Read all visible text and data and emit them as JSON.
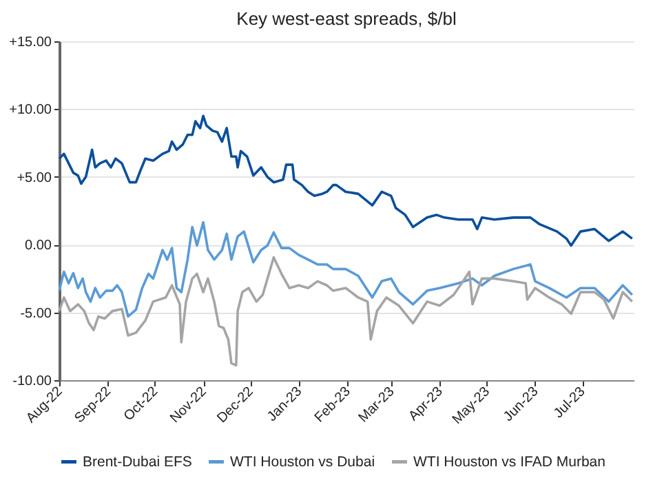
{
  "chart_data": {
    "type": "line",
    "title": "Key west-east spreads, $/bl",
    "xlim": [
      "2022-08-01",
      "2023-08-03"
    ],
    "xticks": [
      {
        "value": "2022-08-01",
        "label": "Aug-22"
      },
      {
        "value": "2022-09-01",
        "label": "Sep-22"
      },
      {
        "value": "2022-10-01",
        "label": "Oct-22"
      },
      {
        "value": "2022-11-01",
        "label": "Nov-22"
      },
      {
        "value": "2022-12-01",
        "label": "Dec-22"
      },
      {
        "value": "2023-01-01",
        "label": "Jan-23"
      },
      {
        "value": "2023-02-01",
        "label": "Feb-23"
      },
      {
        "value": "2023-03-01",
        "label": "Mar-23"
      },
      {
        "value": "2023-04-01",
        "label": "Apr-23"
      },
      {
        "value": "2023-05-01",
        "label": "May-23"
      },
      {
        "value": "2023-06-01",
        "label": "Jun-23"
      },
      {
        "value": "2023-07-01",
        "label": "Jul-23"
      }
    ],
    "ylim": [
      -10,
      15
    ],
    "yticks": [
      {
        "value": -10,
        "label": "-10.00"
      },
      {
        "value": -5,
        "label": "-5.00"
      },
      {
        "value": 0,
        "label": "0.00"
      },
      {
        "value": 5,
        "label": "+5.00"
      },
      {
        "value": 10,
        "label": "+10.00"
      },
      {
        "value": 15,
        "label": "+15.00"
      }
    ],
    "grid": "y",
    "legend": "bottom",
    "line_style": "solid",
    "series": [
      {
        "name": "Brent-Dubai EFS",
        "color": "#0b4f9c",
        "x": [
          "2022-08-01",
          "2022-08-04",
          "2022-08-07",
          "2022-08-10",
          "2022-08-13",
          "2022-08-15",
          "2022-08-18",
          "2022-08-22",
          "2022-08-24",
          "2022-08-27",
          "2022-08-31",
          "2022-09-03",
          "2022-09-06",
          "2022-09-10",
          "2022-09-15",
          "2022-09-19",
          "2022-09-22",
          "2022-09-25",
          "2022-09-30",
          "2022-10-06",
          "2022-10-10",
          "2022-10-12",
          "2022-10-15",
          "2022-10-19",
          "2022-10-22",
          "2022-10-25",
          "2022-10-27",
          "2022-10-30",
          "2022-11-01",
          "2022-11-03",
          "2022-11-07",
          "2022-11-10",
          "2022-11-13",
          "2022-11-16",
          "2022-11-19",
          "2022-11-22",
          "2022-11-23",
          "2022-11-25",
          "2022-11-29",
          "2022-12-03",
          "2022-12-08",
          "2022-12-12",
          "2022-12-16",
          "2022-12-22",
          "2022-12-24",
          "2022-12-28",
          "2022-12-29",
          "2023-01-03",
          "2023-01-07",
          "2023-01-11",
          "2023-01-16",
          "2023-01-19",
          "2023-01-23",
          "2023-01-25",
          "2023-01-31",
          "2023-02-08",
          "2023-02-17",
          "2023-02-23",
          "2023-03-01",
          "2023-03-04",
          "2023-03-10",
          "2023-03-15",
          "2023-03-24",
          "2023-03-30",
          "2023-04-04",
          "2023-04-13",
          "2023-04-22",
          "2023-04-25",
          "2023-04-28",
          "2023-05-06",
          "2023-05-18",
          "2023-05-29",
          "2023-06-04",
          "2023-06-15",
          "2023-06-21",
          "2023-06-24",
          "2023-06-30",
          "2023-07-09",
          "2023-07-18",
          "2023-07-27",
          "2023-08-02"
        ],
        "values": [
          6.35,
          6.7,
          6.0,
          5.3,
          5.1,
          4.5,
          5.0,
          7.0,
          5.7,
          6.0,
          6.2,
          5.7,
          6.35,
          6.0,
          4.6,
          4.6,
          5.5,
          6.35,
          6.2,
          6.7,
          6.9,
          7.6,
          7.0,
          7.4,
          8.1,
          8.1,
          9.1,
          8.6,
          9.5,
          8.8,
          8.4,
          8.3,
          7.6,
          8.6,
          6.5,
          6.5,
          5.7,
          6.9,
          6.5,
          5.1,
          5.7,
          5.0,
          4.6,
          4.8,
          5.9,
          5.9,
          4.8,
          4.4,
          3.9,
          3.6,
          3.75,
          3.9,
          4.4,
          4.4,
          3.9,
          3.75,
          2.9,
          3.9,
          3.6,
          2.7,
          2.2,
          1.3,
          2.0,
          2.2,
          2.0,
          1.85,
          1.85,
          1.15,
          2.0,
          1.85,
          2.0,
          2.0,
          1.5,
          0.97,
          0.45,
          -0.07,
          0.97,
          1.15,
          0.28,
          0.97,
          0.45
        ]
      },
      {
        "name": "WTI Houston vs Dubai",
        "color": "#5b9bd5",
        "x": [
          "2022-08-01",
          "2022-08-04",
          "2022-08-07",
          "2022-08-10",
          "2022-08-13",
          "2022-08-16",
          "2022-08-18",
          "2022-08-21",
          "2022-08-24",
          "2022-08-27",
          "2022-08-31",
          "2022-09-04",
          "2022-09-07",
          "2022-09-10",
          "2022-09-14",
          "2022-09-19",
          "2022-09-23",
          "2022-09-27",
          "2022-09-30",
          "2022-10-06",
          "2022-10-09",
          "2022-10-12",
          "2022-10-15",
          "2022-10-18",
          "2022-10-22",
          "2022-10-25",
          "2022-10-28",
          "2022-11-01",
          "2022-11-04",
          "2022-11-08",
          "2022-11-13",
          "2022-11-16",
          "2022-11-19",
          "2022-11-23",
          "2022-11-27",
          "2022-12-03",
          "2022-12-08",
          "2022-12-12",
          "2022-12-16",
          "2022-12-21",
          "2022-12-26",
          "2023-01-01",
          "2023-01-07",
          "2023-01-13",
          "2023-01-19",
          "2023-01-23",
          "2023-01-31",
          "2023-02-08",
          "2023-02-17",
          "2023-02-23",
          "2023-03-01",
          "2023-03-06",
          "2023-03-15",
          "2023-03-24",
          "2023-04-01",
          "2023-04-13",
          "2023-04-22",
          "2023-04-28",
          "2023-05-06",
          "2023-05-18",
          "2023-05-29",
          "2023-06-01",
          "2023-06-10",
          "2023-06-21",
          "2023-06-30",
          "2023-07-09",
          "2023-07-18",
          "2023-07-27",
          "2023-08-02"
        ],
        "values": [
          -3.4,
          -2.0,
          -2.85,
          -2.1,
          -3.2,
          -2.5,
          -3.5,
          -4.2,
          -3.2,
          -3.9,
          -3.4,
          -3.4,
          -3.0,
          -3.5,
          -5.3,
          -4.8,
          -3.2,
          -2.15,
          -2.5,
          -0.4,
          -1.1,
          -0.25,
          -3.2,
          -3.5,
          -1.1,
          1.3,
          -0.07,
          1.65,
          -0.4,
          -1.1,
          -0.4,
          0.8,
          -1.1,
          0.6,
          0.97,
          -1.3,
          -0.4,
          -0.07,
          0.9,
          -0.25,
          -0.25,
          -0.76,
          -1.1,
          -1.46,
          -1.46,
          -1.8,
          -1.8,
          -2.3,
          -3.9,
          -2.7,
          -2.5,
          -3.5,
          -4.4,
          -3.4,
          -3.2,
          -2.85,
          -2.5,
          -3.0,
          -2.3,
          -1.8,
          -1.46,
          -2.7,
          -3.2,
          -3.9,
          -3.2,
          -3.2,
          -4.2,
          -3.0,
          -3.7
        ]
      },
      {
        "name": "WTI Houston vs IFAD Murban",
        "color": "#a5a5a5",
        "x": [
          "2022-08-01",
          "2022-08-04",
          "2022-08-08",
          "2022-08-13",
          "2022-08-17",
          "2022-08-20",
          "2022-08-23",
          "2022-08-26",
          "2022-08-30",
          "2022-09-04",
          "2022-09-10",
          "2022-09-14",
          "2022-09-19",
          "2022-09-25",
          "2022-09-30",
          "2022-10-08",
          "2022-10-12",
          "2022-10-17",
          "2022-10-18",
          "2022-10-21",
          "2022-10-25",
          "2022-10-28",
          "2022-11-01",
          "2022-11-04",
          "2022-11-08",
          "2022-11-11",
          "2022-11-14",
          "2022-11-17",
          "2022-11-19",
          "2022-11-22",
          "2022-11-23",
          "2022-11-26",
          "2022-11-30",
          "2022-12-05",
          "2022-12-09",
          "2022-12-16",
          "2022-12-21",
          "2022-12-26",
          "2023-01-01",
          "2023-01-07",
          "2023-01-13",
          "2023-01-19",
          "2023-01-23",
          "2023-01-31",
          "2023-02-08",
          "2023-02-14",
          "2023-02-16",
          "2023-02-20",
          "2023-02-26",
          "2023-03-06",
          "2023-03-15",
          "2023-03-24",
          "2023-04-01",
          "2023-04-10",
          "2023-04-16",
          "2023-04-20",
          "2023-04-22",
          "2023-04-28",
          "2023-05-06",
          "2023-05-18",
          "2023-05-26",
          "2023-05-27",
          "2023-06-01",
          "2023-06-10",
          "2023-06-18",
          "2023-06-24",
          "2023-06-30",
          "2023-07-09",
          "2023-07-15",
          "2023-07-21",
          "2023-07-27",
          "2023-08-02"
        ],
        "values": [
          -4.9,
          -3.9,
          -4.9,
          -4.4,
          -4.9,
          -5.8,
          -6.3,
          -5.3,
          -5.45,
          -4.9,
          -4.75,
          -6.7,
          -6.5,
          -5.6,
          -4.2,
          -3.9,
          -3.0,
          -4.4,
          -7.2,
          -4.2,
          -2.5,
          -2.15,
          -3.5,
          -2.5,
          -4.2,
          -6.0,
          -6.15,
          -7.0,
          -8.75,
          -8.9,
          -4.9,
          -3.5,
          -3.2,
          -4.2,
          -3.7,
          -0.94,
          -2.15,
          -3.2,
          -3.0,
          -3.2,
          -2.7,
          -3.0,
          -3.4,
          -3.2,
          -3.9,
          -4.2,
          -7.0,
          -4.9,
          -3.9,
          -4.5,
          -5.8,
          -4.2,
          -4.5,
          -3.7,
          -2.7,
          -2.0,
          -4.4,
          -2.5,
          -2.5,
          -2.7,
          -2.85,
          -4.05,
          -3.2,
          -3.9,
          -4.4,
          -5.1,
          -3.5,
          -3.5,
          -4.05,
          -5.45,
          -3.5,
          -4.2
        ]
      }
    ]
  }
}
